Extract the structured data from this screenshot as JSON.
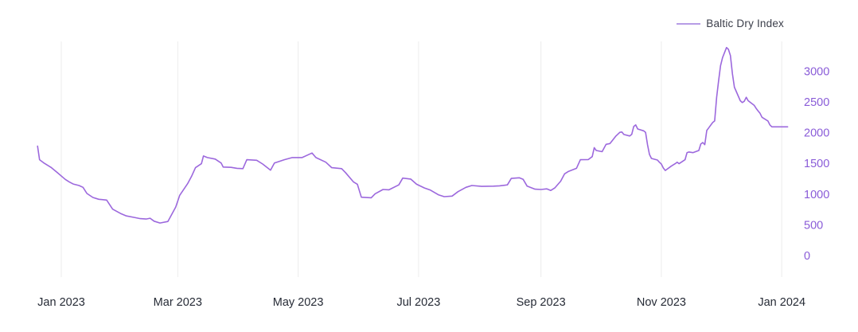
{
  "legend": {
    "label": "Baltic Dry Index"
  },
  "colors": {
    "line": "#9c68dd",
    "legend_swatch": "#b79ce6",
    "y_tick_text": "#8a5cd8",
    "x_tick_text": "#262b36",
    "gridline": "#ececec",
    "background": "#ffffff"
  },
  "chart_data": {
    "type": "line",
    "title": "",
    "legend_entries": [
      "Baltic Dry Index"
    ],
    "legend_position": "top-right",
    "grid": "vertical-only",
    "x_axis": {
      "ticks": [
        {
          "date": "2023-01-01",
          "label": "Jan 2023"
        },
        {
          "date": "2023-03-01",
          "label": "Mar 2023"
        },
        {
          "date": "2023-05-01",
          "label": "May 2023"
        },
        {
          "date": "2023-07-01",
          "label": "Jul 2023"
        },
        {
          "date": "2023-09-01",
          "label": "Sep 2023"
        },
        {
          "date": "2023-11-01",
          "label": "Nov 2023"
        },
        {
          "date": "2024-01-01",
          "label": "Jan 2024"
        }
      ]
    },
    "y_axis": {
      "side": "right",
      "ticks": [
        0,
        500,
        1000,
        1500,
        2000,
        2500,
        3000
      ],
      "ylim": [
        0,
        3480
      ]
    },
    "series": [
      {
        "name": "Baltic Dry Index",
        "points": [
          [
            "2022-12-20",
            1780
          ],
          [
            "2022-12-21",
            1560
          ],
          [
            "2022-12-23",
            1510
          ],
          [
            "2022-12-27",
            1430
          ],
          [
            "2022-12-30",
            1350
          ],
          [
            "2023-01-03",
            1240
          ],
          [
            "2023-01-05",
            1200
          ],
          [
            "2023-01-07",
            1165
          ],
          [
            "2023-01-10",
            1140
          ],
          [
            "2023-01-12",
            1110
          ],
          [
            "2023-01-14",
            1010
          ],
          [
            "2023-01-17",
            946
          ],
          [
            "2023-01-20",
            916
          ],
          [
            "2023-01-24",
            903
          ],
          [
            "2023-01-27",
            755
          ],
          [
            "2023-01-31",
            685
          ],
          [
            "2023-02-03",
            645
          ],
          [
            "2023-02-07",
            621
          ],
          [
            "2023-02-10",
            601
          ],
          [
            "2023-02-13",
            595
          ],
          [
            "2023-02-15",
            608
          ],
          [
            "2023-02-17",
            560
          ],
          [
            "2023-02-20",
            530
          ],
          [
            "2023-02-24",
            554
          ],
          [
            "2023-02-28",
            790
          ],
          [
            "2023-03-02",
            980
          ],
          [
            "2023-03-06",
            1170
          ],
          [
            "2023-03-08",
            1290
          ],
          [
            "2023-03-10",
            1430
          ],
          [
            "2023-03-13",
            1495
          ],
          [
            "2023-03-14",
            1620
          ],
          [
            "2023-03-16",
            1595
          ],
          [
            "2023-03-20",
            1570
          ],
          [
            "2023-03-23",
            1505
          ],
          [
            "2023-03-24",
            1440
          ],
          [
            "2023-03-28",
            1435
          ],
          [
            "2023-03-31",
            1420
          ],
          [
            "2023-04-03",
            1415
          ],
          [
            "2023-04-05",
            1560
          ],
          [
            "2023-04-10",
            1550
          ],
          [
            "2023-04-13",
            1490
          ],
          [
            "2023-04-17",
            1390
          ],
          [
            "2023-04-19",
            1505
          ],
          [
            "2023-04-24",
            1560
          ],
          [
            "2023-04-28",
            1595
          ],
          [
            "2023-05-03",
            1595
          ],
          [
            "2023-05-08",
            1668
          ],
          [
            "2023-05-10",
            1595
          ],
          [
            "2023-05-15",
            1520
          ],
          [
            "2023-05-18",
            1430
          ],
          [
            "2023-05-23",
            1415
          ],
          [
            "2023-05-25",
            1350
          ],
          [
            "2023-05-29",
            1200
          ],
          [
            "2023-05-31",
            1160
          ],
          [
            "2023-06-02",
            950
          ],
          [
            "2023-06-07",
            940
          ],
          [
            "2023-06-09",
            1005
          ],
          [
            "2023-06-13",
            1075
          ],
          [
            "2023-06-16",
            1070
          ],
          [
            "2023-06-21",
            1150
          ],
          [
            "2023-06-23",
            1260
          ],
          [
            "2023-06-27",
            1245
          ],
          [
            "2023-06-30",
            1160
          ],
          [
            "2023-07-04",
            1100
          ],
          [
            "2023-07-07",
            1065
          ],
          [
            "2023-07-11",
            990
          ],
          [
            "2023-07-14",
            958
          ],
          [
            "2023-07-18",
            968
          ],
          [
            "2023-07-21",
            1040
          ],
          [
            "2023-07-25",
            1110
          ],
          [
            "2023-07-28",
            1140
          ],
          [
            "2023-08-02",
            1125
          ],
          [
            "2023-08-08",
            1130
          ],
          [
            "2023-08-11",
            1135
          ],
          [
            "2023-08-15",
            1150
          ],
          [
            "2023-08-17",
            1255
          ],
          [
            "2023-08-21",
            1265
          ],
          [
            "2023-08-23",
            1240
          ],
          [
            "2023-08-25",
            1130
          ],
          [
            "2023-08-29",
            1080
          ],
          [
            "2023-09-01",
            1075
          ],
          [
            "2023-09-04",
            1085
          ],
          [
            "2023-09-06",
            1060
          ],
          [
            "2023-09-08",
            1100
          ],
          [
            "2023-09-11",
            1210
          ],
          [
            "2023-09-13",
            1330
          ],
          [
            "2023-09-15",
            1370
          ],
          [
            "2023-09-19",
            1420
          ],
          [
            "2023-09-21",
            1560
          ],
          [
            "2023-09-25",
            1562
          ],
          [
            "2023-09-27",
            1610
          ],
          [
            "2023-09-28",
            1755
          ],
          [
            "2023-09-29",
            1710
          ],
          [
            "2023-10-02",
            1690
          ],
          [
            "2023-10-04",
            1810
          ],
          [
            "2023-10-06",
            1822
          ],
          [
            "2023-10-09",
            1945
          ],
          [
            "2023-10-11",
            2005
          ],
          [
            "2023-10-12",
            2010
          ],
          [
            "2023-10-13",
            1970
          ],
          [
            "2023-10-16",
            1946
          ],
          [
            "2023-10-17",
            1972
          ],
          [
            "2023-10-18",
            2100
          ],
          [
            "2023-10-19",
            2125
          ],
          [
            "2023-10-20",
            2060
          ],
          [
            "2023-10-23",
            2030
          ],
          [
            "2023-10-24",
            2005
          ],
          [
            "2023-10-25",
            1800
          ],
          [
            "2023-10-26",
            1645
          ],
          [
            "2023-10-27",
            1580
          ],
          [
            "2023-10-30",
            1555
          ],
          [
            "2023-10-31",
            1520
          ],
          [
            "2023-11-01",
            1490
          ],
          [
            "2023-11-02",
            1425
          ],
          [
            "2023-11-03",
            1385
          ],
          [
            "2023-11-06",
            1455
          ],
          [
            "2023-11-08",
            1495
          ],
          [
            "2023-11-09",
            1520
          ],
          [
            "2023-11-10",
            1495
          ],
          [
            "2023-11-13",
            1560
          ],
          [
            "2023-11-14",
            1675
          ],
          [
            "2023-11-15",
            1685
          ],
          [
            "2023-11-17",
            1675
          ],
          [
            "2023-11-20",
            1710
          ],
          [
            "2023-11-21",
            1815
          ],
          [
            "2023-11-22",
            1840
          ],
          [
            "2023-11-23",
            1805
          ],
          [
            "2023-11-24",
            2035
          ],
          [
            "2023-11-27",
            2165
          ],
          [
            "2023-11-28",
            2190
          ],
          [
            "2023-11-29",
            2575
          ],
          [
            "2023-11-30",
            2837
          ],
          [
            "2023-12-01",
            3090
          ],
          [
            "2023-12-02",
            3220
          ],
          [
            "2023-12-04",
            3385
          ],
          [
            "2023-12-05",
            3355
          ],
          [
            "2023-12-06",
            3255
          ],
          [
            "2023-12-07",
            2960
          ],
          [
            "2023-12-08",
            2740
          ],
          [
            "2023-12-11",
            2520
          ],
          [
            "2023-12-12",
            2490
          ],
          [
            "2023-12-13",
            2510
          ],
          [
            "2023-12-14",
            2575
          ],
          [
            "2023-12-15",
            2520
          ],
          [
            "2023-12-18",
            2445
          ],
          [
            "2023-12-19",
            2395
          ],
          [
            "2023-12-20",
            2355
          ],
          [
            "2023-12-21",
            2315
          ],
          [
            "2023-12-22",
            2250
          ],
          [
            "2023-12-25",
            2190
          ],
          [
            "2023-12-26",
            2125
          ],
          [
            "2023-12-27",
            2094
          ],
          [
            "2023-12-29",
            2094
          ],
          [
            "2024-01-02",
            2094
          ],
          [
            "2024-01-04",
            2094
          ]
        ]
      }
    ]
  }
}
